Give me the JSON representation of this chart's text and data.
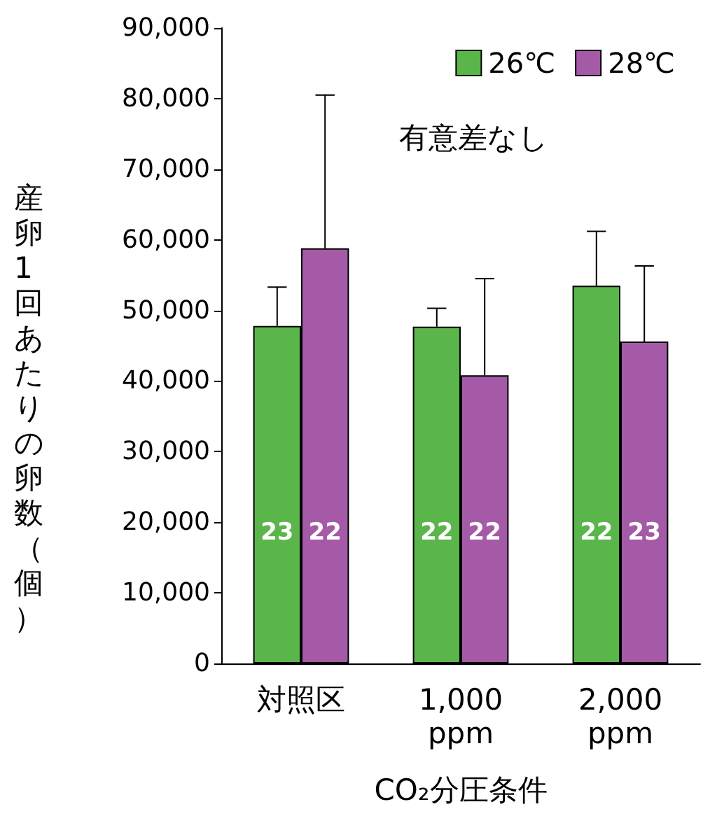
{
  "chart_data": {
    "type": "bar",
    "xlabel": "CO₂分圧条件",
    "ylabel": "産卵1回あたりの卵数（個）",
    "categories": [
      "対照区",
      "1,000\nppm",
      "2,000\nppm"
    ],
    "series": [
      {
        "name": "26℃",
        "color": "#5ab54b",
        "values": [
          47800,
          47700,
          53500
        ],
        "errors": [
          [
            47800,
            53300
          ],
          [
            47700,
            50300
          ],
          [
            53500,
            61200
          ]
        ]
      },
      {
        "name": "28℃",
        "color": "#a45aa6",
        "values": [
          58800,
          40800,
          45600
        ],
        "errors": [
          [
            58800,
            80500
          ],
          [
            40800,
            54500
          ],
          [
            45600,
            56300
          ]
        ]
      }
    ],
    "ylim": [
      0,
      90000
    ],
    "yticks": [
      {
        "value": 0,
        "label": "0"
      },
      {
        "value": 10000,
        "label": "10,000"
      },
      {
        "value": 20000,
        "label": "20,000"
      },
      {
        "value": 30000,
        "label": "30,000"
      },
      {
        "value": 40000,
        "label": "40,000"
      },
      {
        "value": 50000,
        "label": "50,000"
      },
      {
        "value": 60000,
        "label": "60,000"
      },
      {
        "value": 70000,
        "label": "70,000"
      },
      {
        "value": 80000,
        "label": "80,000"
      },
      {
        "value": 90000,
        "label": "90,000"
      }
    ],
    "annotations": [
      "有意差なし",
      "23",
      "22",
      "22",
      "22",
      "22",
      "23"
    ],
    "legend": "top right",
    "grid": false
  }
}
